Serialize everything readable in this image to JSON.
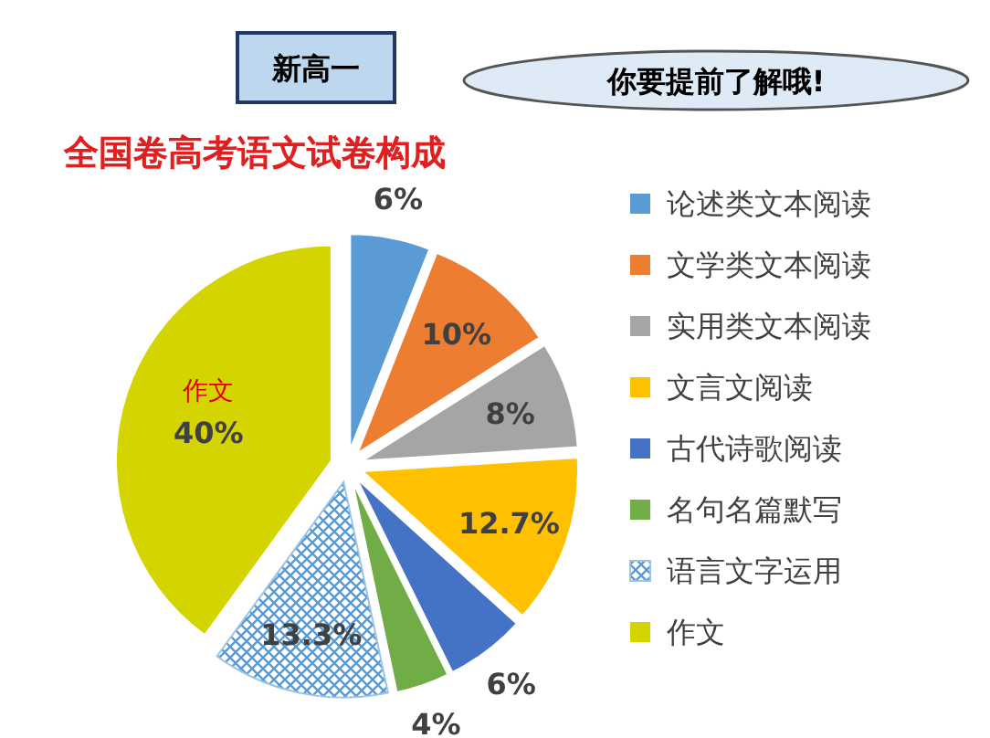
{
  "chart_data": {
    "type": "pie",
    "title": "全国卷高考语文试卷构成",
    "annotations": [
      "新高一",
      "你要提前了解哦!"
    ],
    "categories": [
      "论述类文本阅读",
      "文学类文本阅读",
      "实用类文本阅读",
      "文言文阅读",
      "古代诗歌阅读",
      "名句名篇默写",
      "语言文字运用",
      "作文"
    ],
    "values": [
      6,
      10,
      8,
      12.7,
      6,
      4,
      13.3,
      40
    ],
    "colors": [
      "#5b9bd5",
      "#ed7d31",
      "#a5a5a5",
      "#ffc000",
      "#4472c4",
      "#70ad47",
      "#9dc3e6",
      "#d4d400"
    ],
    "value_labels": [
      "6%",
      "10%",
      "8%",
      "12.7%",
      "6%",
      "4%",
      "13.3%",
      "40%"
    ],
    "legend": "right"
  }
}
